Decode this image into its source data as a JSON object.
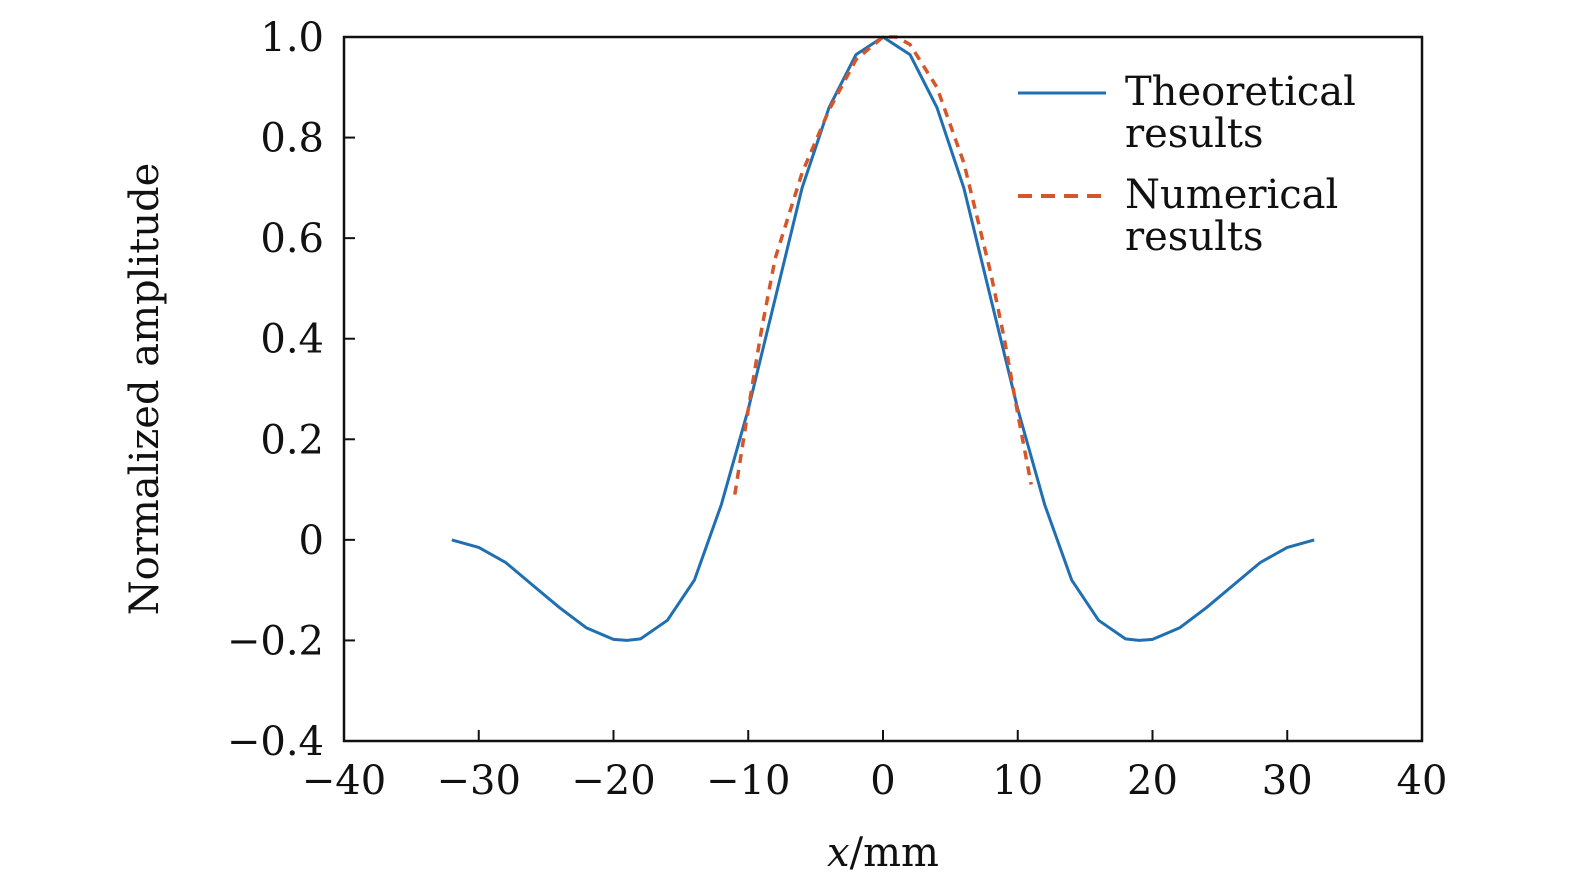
{
  "chart_data": {
    "type": "line",
    "title": "",
    "xlabel": "x/mm",
    "xlabel_var": "x",
    "xlabel_unit": "/mm",
    "ylabel": "Normalized amplitude",
    "xlim": [
      -40,
      40
    ],
    "ylim": [
      -0.4,
      1.0
    ],
    "x_ticks": [
      -40,
      -30,
      -20,
      -10,
      0,
      10,
      20,
      30,
      40
    ],
    "x_tick_labels": [
      "−40",
      "−30",
      "−20",
      "−10",
      "0",
      "10",
      "20",
      "30",
      "40"
    ],
    "y_ticks": [
      -0.4,
      -0.2,
      0,
      0.2,
      0.4,
      0.6,
      0.8,
      1.0
    ],
    "y_tick_labels": [
      "−0.4",
      "−0.2",
      "0",
      "0.2",
      "0.4",
      "0.6",
      "0.8",
      "1.0"
    ],
    "grid": false,
    "legend_position": "top-right",
    "series": [
      {
        "name": "Theoretical results",
        "name_lines": [
          "Theoretical",
          "results"
        ],
        "style": "solid",
        "color": "#1f6fb2",
        "x": [
          -32,
          -30,
          -28,
          -26,
          -24,
          -22,
          -20,
          -19,
          -18,
          -16,
          -14,
          -12,
          -10,
          -8,
          -6,
          -4,
          -2,
          0,
          2,
          4,
          6,
          8,
          10,
          12,
          14,
          16,
          18,
          19,
          20,
          22,
          24,
          26,
          28,
          30,
          32
        ],
        "y": [
          0.0,
          -0.015,
          -0.045,
          -0.09,
          -0.135,
          -0.175,
          -0.198,
          -0.2,
          -0.197,
          -0.16,
          -0.08,
          0.07,
          0.26,
          0.48,
          0.7,
          0.86,
          0.965,
          1.0,
          0.965,
          0.86,
          0.7,
          0.48,
          0.26,
          0.07,
          -0.08,
          -0.16,
          -0.197,
          -0.2,
          -0.198,
          -0.175,
          -0.135,
          -0.09,
          -0.045,
          -0.015,
          0.0
        ]
      },
      {
        "name": "Numerical results",
        "name_lines": [
          "Numerical",
          "results"
        ],
        "style": "dashed",
        "color": "#d4562a",
        "x": [
          -11,
          -10,
          -9,
          -8,
          -6,
          -4,
          -2,
          0,
          1,
          2,
          4,
          6,
          8,
          9,
          10,
          11
        ],
        "y": [
          0.09,
          0.26,
          0.42,
          0.56,
          0.73,
          0.855,
          0.955,
          1.0,
          1.0,
          0.985,
          0.9,
          0.75,
          0.53,
          0.4,
          0.25,
          0.11
        ]
      }
    ]
  }
}
